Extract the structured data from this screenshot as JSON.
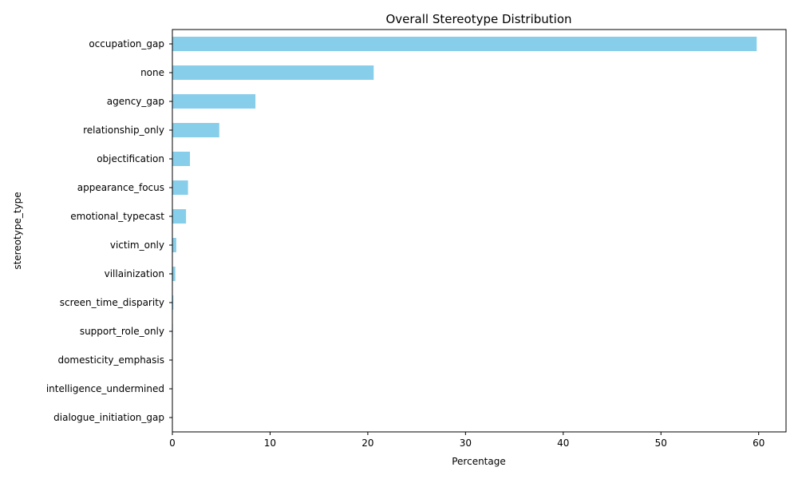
{
  "chart_data": {
    "type": "bar",
    "orientation": "horizontal",
    "title": "Overall Stereotype Distribution",
    "xlabel": "Percentage",
    "ylabel": "stereotype_type",
    "xlim": [
      0,
      62.8
    ],
    "xticks": [
      0,
      10,
      20,
      30,
      40,
      50,
      60
    ],
    "grid": false,
    "bar_color": "#87CEEB",
    "categories": [
      "occupation_gap",
      "none",
      "agency_gap",
      "relationship_only",
      "objectification",
      "appearance_focus",
      "emotional_typecast",
      "victim_only",
      "villainization",
      "screen_time_disparity",
      "support_role_only",
      "domesticity_emphasis",
      "intelligence_undermined",
      "dialogue_initiation_gap"
    ],
    "values": [
      59.8,
      20.6,
      8.5,
      4.8,
      1.8,
      1.6,
      1.4,
      0.4,
      0.3,
      0.1,
      0.05,
      0.03,
      0.02,
      0.01
    ]
  }
}
